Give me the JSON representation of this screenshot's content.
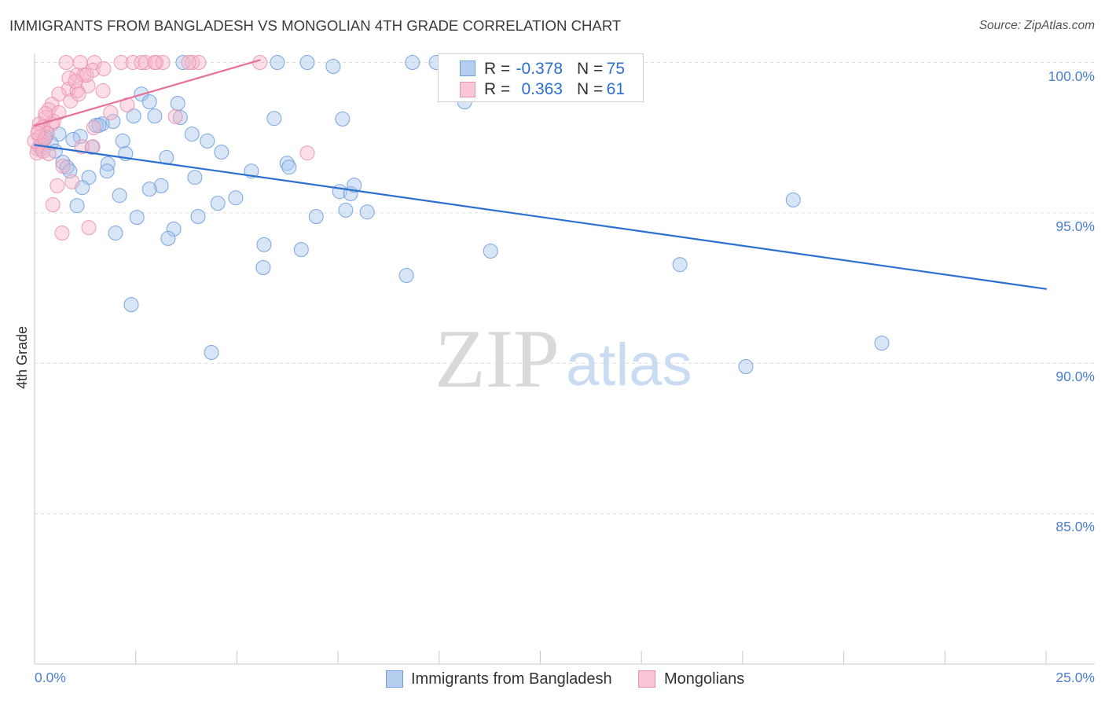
{
  "chart_data": {
    "type": "scatter",
    "title": "IMMIGRANTS FROM BANGLADESH VS MONGOLIAN 4TH GRADE CORRELATION CHART",
    "source": "Source: ZipAtlas.com",
    "ylabel": "4th Grade",
    "xlim": [
      0,
      25
    ],
    "ylim": [
      80,
      100.3
    ],
    "x_ticks": [
      0,
      2.5,
      5,
      7.5,
      10,
      12.5,
      15,
      17.5,
      20,
      22.5,
      25
    ],
    "x_tick_labels": [
      "0.0%",
      "25.0%"
    ],
    "y_ticks": [
      100,
      95,
      90,
      85
    ],
    "y_tick_labels": [
      "100.0%",
      "95.0%",
      "90.0%",
      "85.0%"
    ],
    "grid": true,
    "legend": {
      "r_label": "R =",
      "n_label": "N ="
    },
    "series": [
      {
        "name": "Immigrants from Bangladesh",
        "r": "-0.378",
        "n": "75",
        "color": "#6e9ddb",
        "fill": "#a8c5ee",
        "line_color": "#2b6fd0",
        "trend": {
          "x": [
            0,
            25
          ],
          "y": [
            97.26,
            92.47
          ]
        },
        "points": [
          [
            3.67,
            100.0
          ],
          [
            6.0,
            100.0
          ],
          [
            6.74,
            100.0
          ],
          [
            7.38,
            99.87
          ],
          [
            9.34,
            100.0
          ],
          [
            9.93,
            100.0
          ],
          [
            10.63,
            98.69
          ],
          [
            2.64,
            98.95
          ],
          [
            2.84,
            98.69
          ],
          [
            3.54,
            98.64
          ],
          [
            2.45,
            98.22
          ],
          [
            2.97,
            98.22
          ],
          [
            3.6,
            98.17
          ],
          [
            1.94,
            98.04
          ],
          [
            1.67,
            97.96
          ],
          [
            1.52,
            97.91
          ],
          [
            5.92,
            98.14
          ],
          [
            7.61,
            98.12
          ],
          [
            3.89,
            97.62
          ],
          [
            4.27,
            97.39
          ],
          [
            2.18,
            97.39
          ],
          [
            4.62,
            97.02
          ],
          [
            2.25,
            96.97
          ],
          [
            3.26,
            96.84
          ],
          [
            1.13,
            97.54
          ],
          [
            0.95,
            97.44
          ],
          [
            1.42,
            97.18
          ],
          [
            0.6,
            97.62
          ],
          [
            0.31,
            97.65
          ],
          [
            0.21,
            97.39
          ],
          [
            0.41,
            97.31
          ],
          [
            0.12,
            97.2
          ],
          [
            0.51,
            97.05
          ],
          [
            0.7,
            96.68
          ],
          [
            0.8,
            96.52
          ],
          [
            0.87,
            96.39
          ],
          [
            1.81,
            96.63
          ],
          [
            1.79,
            96.39
          ],
          [
            1.34,
            96.18
          ],
          [
            1.18,
            95.84
          ],
          [
            3.13,
            95.9
          ],
          [
            2.84,
            95.79
          ],
          [
            3.96,
            96.18
          ],
          [
            5.36,
            96.39
          ],
          [
            6.24,
            96.65
          ],
          [
            6.29,
            96.52
          ],
          [
            2.1,
            95.58
          ],
          [
            1.05,
            95.24
          ],
          [
            4.97,
            95.5
          ],
          [
            4.53,
            95.32
          ],
          [
            7.54,
            95.71
          ],
          [
            7.81,
            95.64
          ],
          [
            7.9,
            95.92
          ],
          [
            2.53,
            94.85
          ],
          [
            4.04,
            94.88
          ],
          [
            6.96,
            94.88
          ],
          [
            7.69,
            95.09
          ],
          [
            8.22,
            95.03
          ],
          [
            3.44,
            94.46
          ],
          [
            2.0,
            94.33
          ],
          [
            3.3,
            94.15
          ],
          [
            5.67,
            93.94
          ],
          [
            6.59,
            93.78
          ],
          [
            11.27,
            93.73
          ],
          [
            5.65,
            93.18
          ],
          [
            9.19,
            92.92
          ],
          [
            15.95,
            93.28
          ],
          [
            18.75,
            95.43
          ],
          [
            2.39,
            91.95
          ],
          [
            4.37,
            90.36
          ],
          [
            17.58,
            89.89
          ],
          [
            20.94,
            90.67
          ],
          [
            0.17,
            97.12
          ],
          [
            0.27,
            97.52
          ],
          [
            1.59,
            97.91
          ]
        ]
      },
      {
        "name": "Mongolians",
        "r": "0.363",
        "n": "61",
        "color": "#ea93ae",
        "fill": "#f6b6ca",
        "line_color": "#e8719a",
        "trend": {
          "x": [
            0,
            5.57
          ],
          "y": [
            97.9,
            100.08
          ]
        },
        "points": [
          [
            0.78,
            100.0
          ],
          [
            1.13,
            100.0
          ],
          [
            1.48,
            100.0
          ],
          [
            2.14,
            100.0
          ],
          [
            2.43,
            100.0
          ],
          [
            2.74,
            100.0
          ],
          [
            3.01,
            100.0
          ],
          [
            3.17,
            100.0
          ],
          [
            3.9,
            100.0
          ],
          [
            4.06,
            100.0
          ],
          [
            5.57,
            100.0
          ],
          [
            1.44,
            99.74
          ],
          [
            1.05,
            99.58
          ],
          [
            1.22,
            99.58
          ],
          [
            0.85,
            99.48
          ],
          [
            1.32,
            99.22
          ],
          [
            0.84,
            99.11
          ],
          [
            1.05,
            99.06
          ],
          [
            1.69,
            99.06
          ],
          [
            0.6,
            98.95
          ],
          [
            0.89,
            98.72
          ],
          [
            0.43,
            98.61
          ],
          [
            2.29,
            98.59
          ],
          [
            0.35,
            98.43
          ],
          [
            0.6,
            98.33
          ],
          [
            1.88,
            98.33
          ],
          [
            0.27,
            98.17
          ],
          [
            3.48,
            98.2
          ],
          [
            0.12,
            97.96
          ],
          [
            0.43,
            97.96
          ],
          [
            0.21,
            97.86
          ],
          [
            0.1,
            97.75
          ],
          [
            1.46,
            97.83
          ],
          [
            0.31,
            97.65
          ],
          [
            0.12,
            97.52
          ],
          [
            0.17,
            97.26
          ],
          [
            0.08,
            97.12
          ],
          [
            0.06,
            96.99
          ],
          [
            0.21,
            97.05
          ],
          [
            1.44,
            97.2
          ],
          [
            1.17,
            97.2
          ],
          [
            6.74,
            96.99
          ],
          [
            0.7,
            96.55
          ],
          [
            0.93,
            96.03
          ],
          [
            0.56,
            95.9
          ],
          [
            0.45,
            95.27
          ],
          [
            0.68,
            94.33
          ],
          [
            1.34,
            94.51
          ],
          [
            1.28,
            99.58
          ],
          [
            1.01,
            99.37
          ],
          [
            0.47,
            98.04
          ],
          [
            0.0,
            97.39
          ],
          [
            0.25,
            97.46
          ],
          [
            2.64,
            100.0
          ],
          [
            3.81,
            100.0
          ],
          [
            1.09,
            98.95
          ],
          [
            0.35,
            96.97
          ],
          [
            0.08,
            97.65
          ],
          [
            0.27,
            98.3
          ],
          [
            1.71,
            99.79
          ],
          [
            2.97,
            100.0
          ]
        ]
      }
    ]
  },
  "watermark": {
    "zip": "ZIP",
    "atlas": "atlas"
  }
}
